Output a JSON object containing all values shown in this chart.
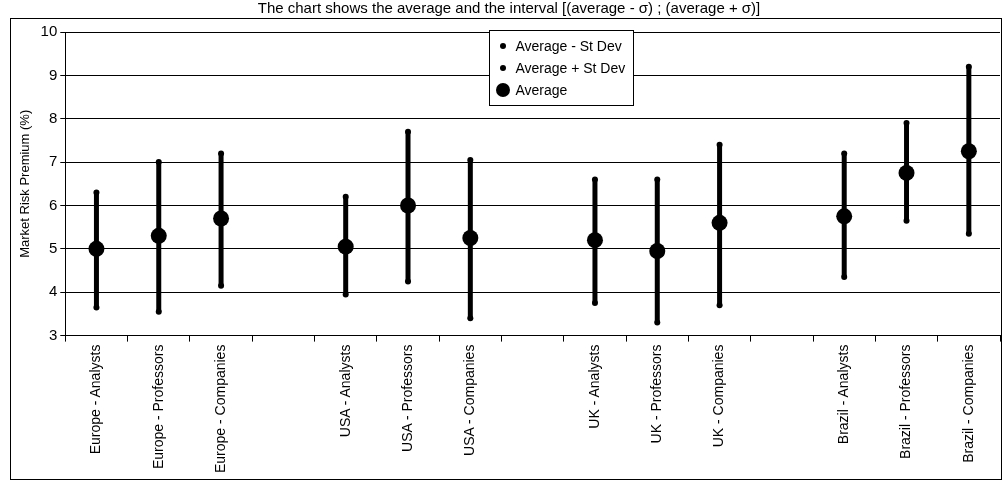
{
  "chart_data": {
    "type": "scatter",
    "title": "The chart shows the average and the interval [(average - σ) ; (average + σ)]",
    "ylabel": "Market Risk Premium (%)",
    "categories": [
      "Europe - Analysts",
      "Europe - Professors",
      "Europe - Companies",
      null,
      "USA - Analysts",
      "USA - Professors",
      "USA - Companies",
      null,
      "UK - Analysts",
      "UK - Professors",
      "UK - Companies",
      null,
      "Brazil - Analysts",
      "Brazil - Professors",
      "Brazil - Companies"
    ],
    "series": [
      {
        "name": "Average - St Dev",
        "color": "#000000",
        "values": [
          3.65,
          3.55,
          4.15,
          null,
          3.95,
          4.25,
          3.4,
          null,
          3.75,
          3.3,
          3.7,
          null,
          4.35,
          5.65,
          5.35
        ]
      },
      {
        "name": "Average + St Dev",
        "color": "#000000",
        "values": [
          6.3,
          7.0,
          7.2,
          null,
          6.2,
          7.7,
          7.05,
          null,
          6.6,
          6.6,
          7.4,
          null,
          7.2,
          7.9,
          9.2
        ]
      },
      {
        "name": "Average",
        "color": "#000000",
        "marker": "circle",
        "values": [
          5.0,
          5.3,
          5.7,
          null,
          5.05,
          6.0,
          5.25,
          null,
          5.2,
          4.95,
          5.6,
          null,
          5.75,
          6.75,
          7.25
        ]
      }
    ],
    "ylim": [
      3,
      10
    ],
    "yticks": [
      3,
      4,
      5,
      6,
      7,
      8,
      9,
      10
    ],
    "grid": "y",
    "legend": "top"
  }
}
